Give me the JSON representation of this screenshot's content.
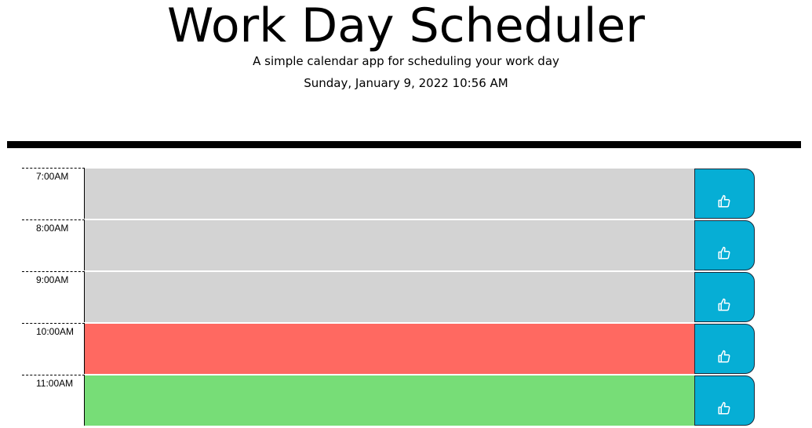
{
  "header": {
    "title": "Work Day Scheduler",
    "subtitle": "A simple calendar app for scheduling your work day",
    "current_datetime": "Sunday, January 9, 2022 10:56 AM"
  },
  "colors": {
    "past": "#d3d3d3",
    "present": "#ff6961",
    "future": "#77dd77",
    "save_button": "#06aed5"
  },
  "time_blocks": [
    {
      "hour": "7:00AM",
      "status": "past",
      "text": "",
      "save_icon": "thumbs-up-icon"
    },
    {
      "hour": "8:00AM",
      "status": "past",
      "text": "",
      "save_icon": "thumbs-up-icon"
    },
    {
      "hour": "9:00AM",
      "status": "past",
      "text": "",
      "save_icon": "thumbs-up-icon"
    },
    {
      "hour": "10:00AM",
      "status": "present",
      "text": "",
      "save_icon": "thumbs-up-icon"
    },
    {
      "hour": "11:00AM",
      "status": "future",
      "text": "",
      "save_icon": "thumbs-up-icon"
    }
  ]
}
